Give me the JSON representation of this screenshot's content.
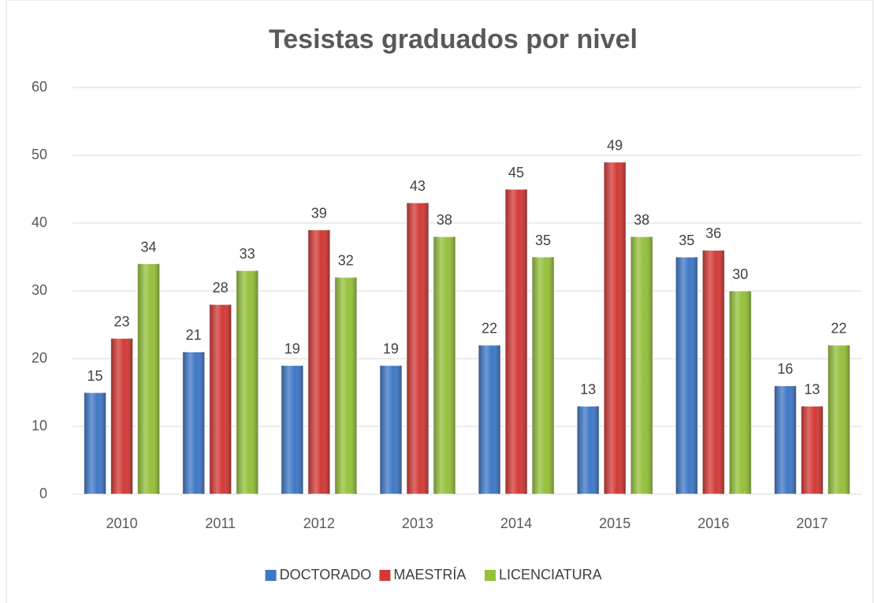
{
  "chart_data": {
    "type": "bar",
    "title": "Tesistas graduados por nivel",
    "categories": [
      "2010",
      "2011",
      "2012",
      "2013",
      "2014",
      "2015",
      "2016",
      "2017"
    ],
    "series": [
      {
        "name": "DOCTORADO",
        "color": "#3f78c7",
        "values": [
          15,
          21,
          19,
          19,
          22,
          13,
          35,
          16
        ]
      },
      {
        "name": "MAESTRÍA",
        "color": "#d33a36",
        "values": [
          23,
          28,
          39,
          43,
          45,
          49,
          36,
          13
        ]
      },
      {
        "name": "LICENCIATURA",
        "color": "#95c13b",
        "values": [
          34,
          33,
          32,
          38,
          35,
          38,
          30,
          22
        ]
      }
    ],
    "ylim": [
      0,
      60
    ],
    "yticks": [
      0,
      10,
      20,
      30,
      40,
      50,
      60
    ],
    "grid": true,
    "legend": "bottom"
  }
}
